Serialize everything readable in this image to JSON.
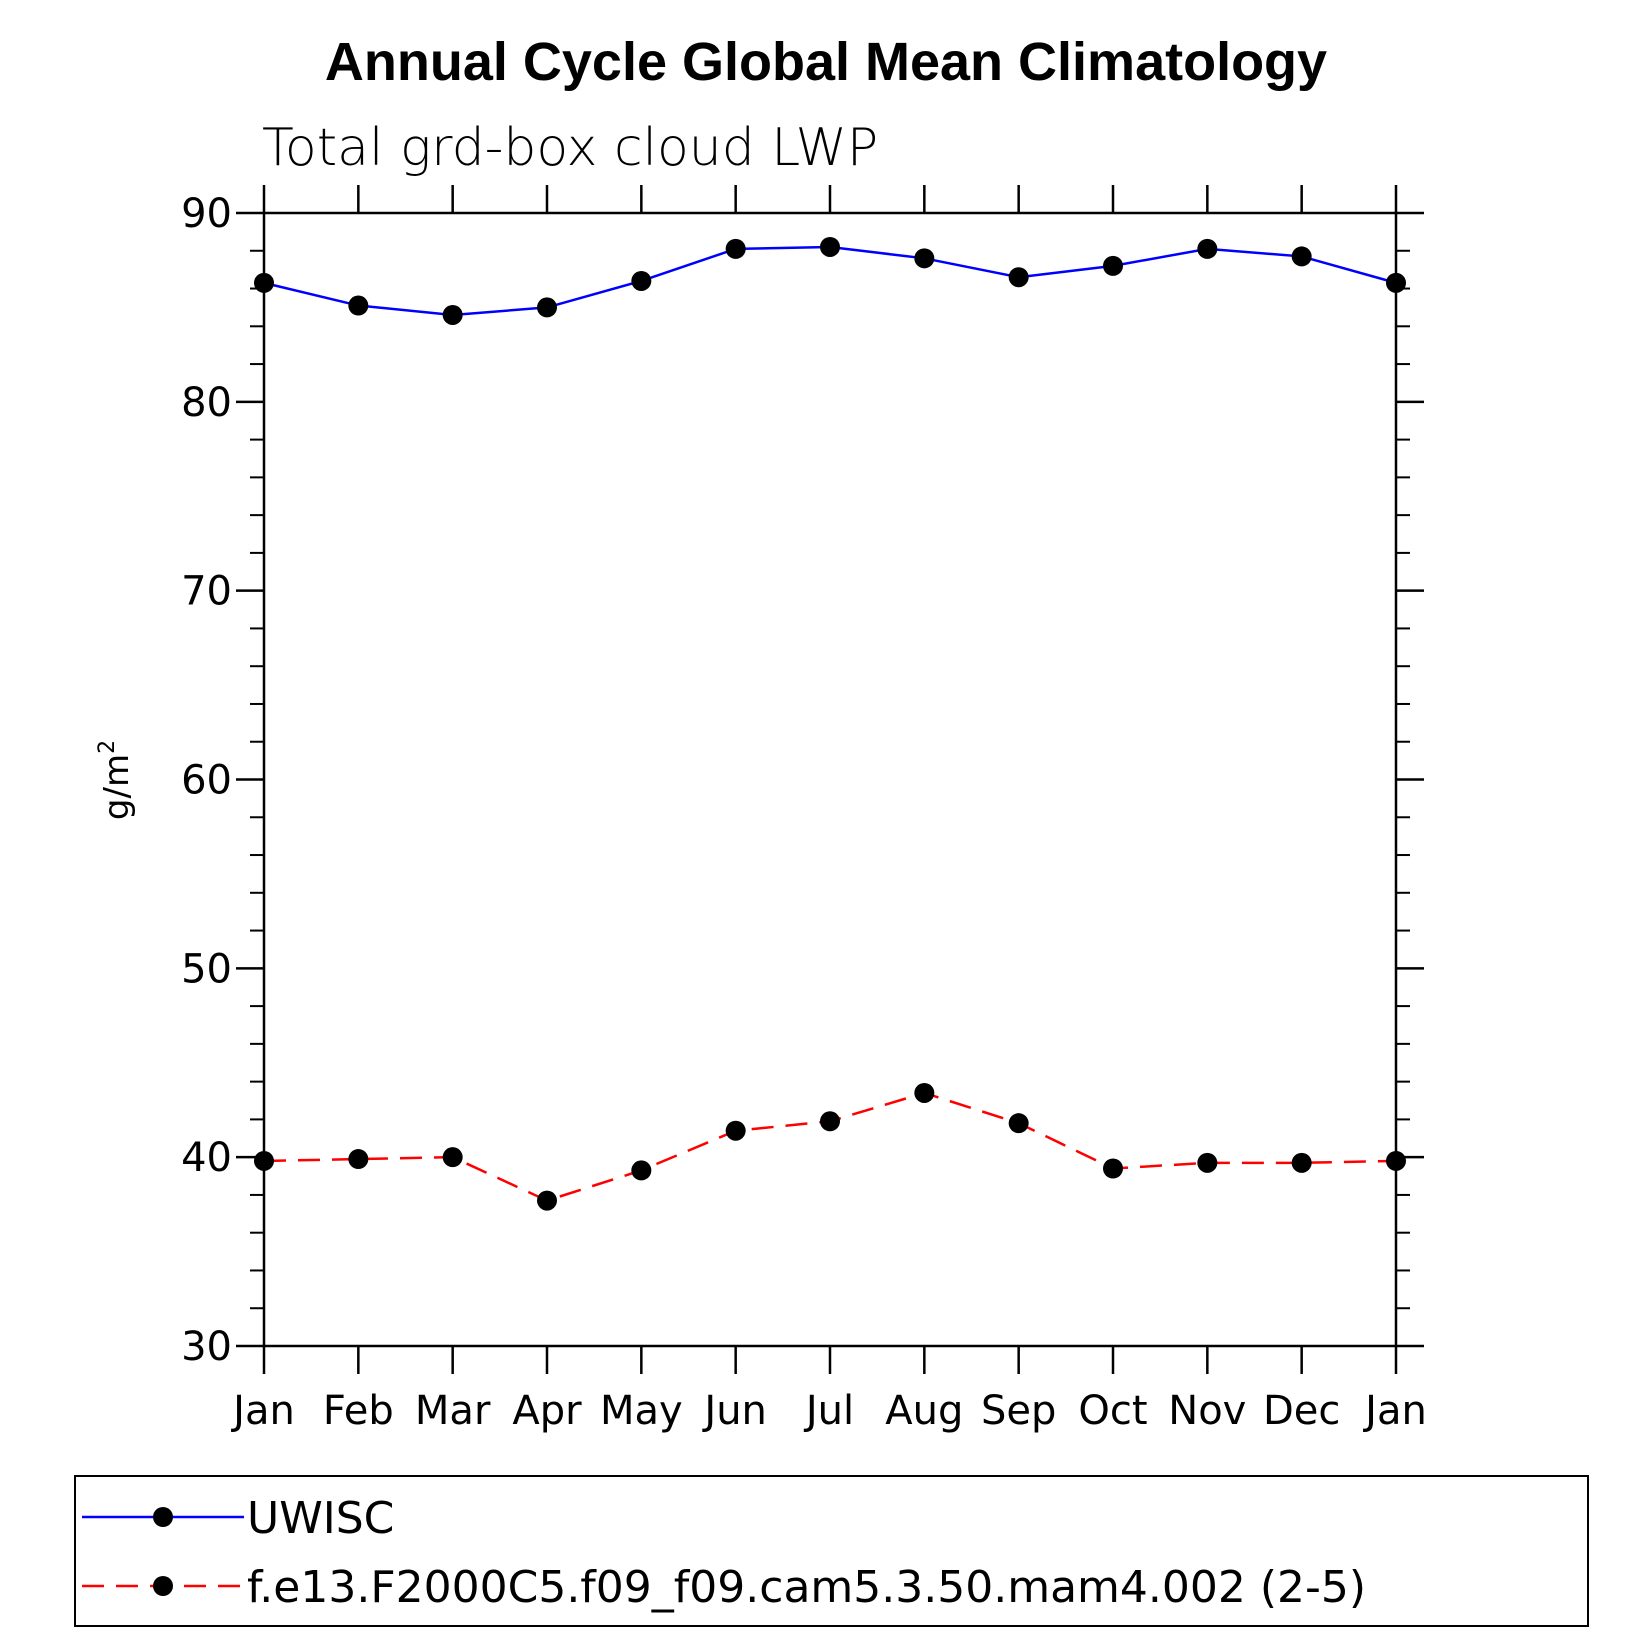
{
  "chart_data": {
    "type": "line",
    "title": "Annual Cycle Global Mean Climatology",
    "subtitle": "Total grd-box cloud LWP",
    "ylabel": "g/m",
    "ylabel_superscript": "2",
    "xlabel": "",
    "categories": [
      "Jan",
      "Feb",
      "Mar",
      "Apr",
      "May",
      "Jun",
      "Jul",
      "Aug",
      "Sep",
      "Oct",
      "Nov",
      "Dec",
      "Jan"
    ],
    "ylim": [
      30,
      90
    ],
    "yticks": [
      30,
      40,
      50,
      60,
      70,
      80,
      90
    ],
    "grid": false,
    "legend_position": "bottom",
    "series": [
      {
        "name": "UWISC",
        "color": "#0000ff",
        "dash": "solid",
        "values": [
          86.3,
          85.1,
          84.6,
          85.0,
          86.4,
          88.1,
          88.2,
          87.6,
          86.6,
          87.2,
          88.1,
          87.7,
          86.3
        ]
      },
      {
        "name": "f.e13.F2000C5.f09_f09.cam5.3.50.mam4.002 (2-5)",
        "color": "#ff0000",
        "dash": "dashed",
        "values": [
          39.8,
          39.9,
          40.0,
          37.7,
          39.3,
          41.4,
          41.9,
          43.4,
          41.8,
          39.4,
          39.7,
          39.7,
          39.8
        ]
      }
    ]
  }
}
